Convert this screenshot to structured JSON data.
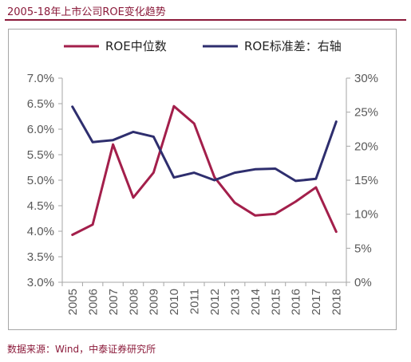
{
  "header": {
    "title": "2005-18年上市公司ROE变化趋势"
  },
  "footer": {
    "source": "数据来源：Wind，中泰证券研究所"
  },
  "colors": {
    "accent": "#8b1a3a",
    "roe_median": "#a31f4b",
    "roe_std": "#2e2e6e"
  },
  "chart_data": {
    "type": "line",
    "title": "2005-18年上市公司ROE变化趋势",
    "x": [
      "2005",
      "2006",
      "2007",
      "2008",
      "2009",
      "2010",
      "2011",
      "2012",
      "2013",
      "2014",
      "2015",
      "2016",
      "2017",
      "2018"
    ],
    "series": [
      {
        "name": "ROE中位数",
        "axis": "left",
        "values": [
          3.93,
          4.13,
          5.7,
          4.66,
          5.15,
          6.45,
          6.11,
          5.06,
          4.56,
          4.31,
          4.34,
          4.58,
          4.86,
          3.99
        ]
      },
      {
        "name": "ROE标准差：右轴",
        "axis": "right",
        "values": [
          25.8,
          20.6,
          20.9,
          22.1,
          21.4,
          15.4,
          16.1,
          15.0,
          16.1,
          16.6,
          16.7,
          14.9,
          15.2,
          23.6
        ]
      }
    ],
    "ylim_left": [
      3.0,
      7.0
    ],
    "ylim_right": [
      0,
      30
    ],
    "left_ticks": [
      "3.0%",
      "3.5%",
      "4.0%",
      "4.5%",
      "5.0%",
      "5.5%",
      "6.0%",
      "6.5%",
      "7.0%"
    ],
    "right_ticks": [
      "0%",
      "5%",
      "10%",
      "15%",
      "20%",
      "25%",
      "30%"
    ],
    "legend_position": "top",
    "grid": false
  }
}
